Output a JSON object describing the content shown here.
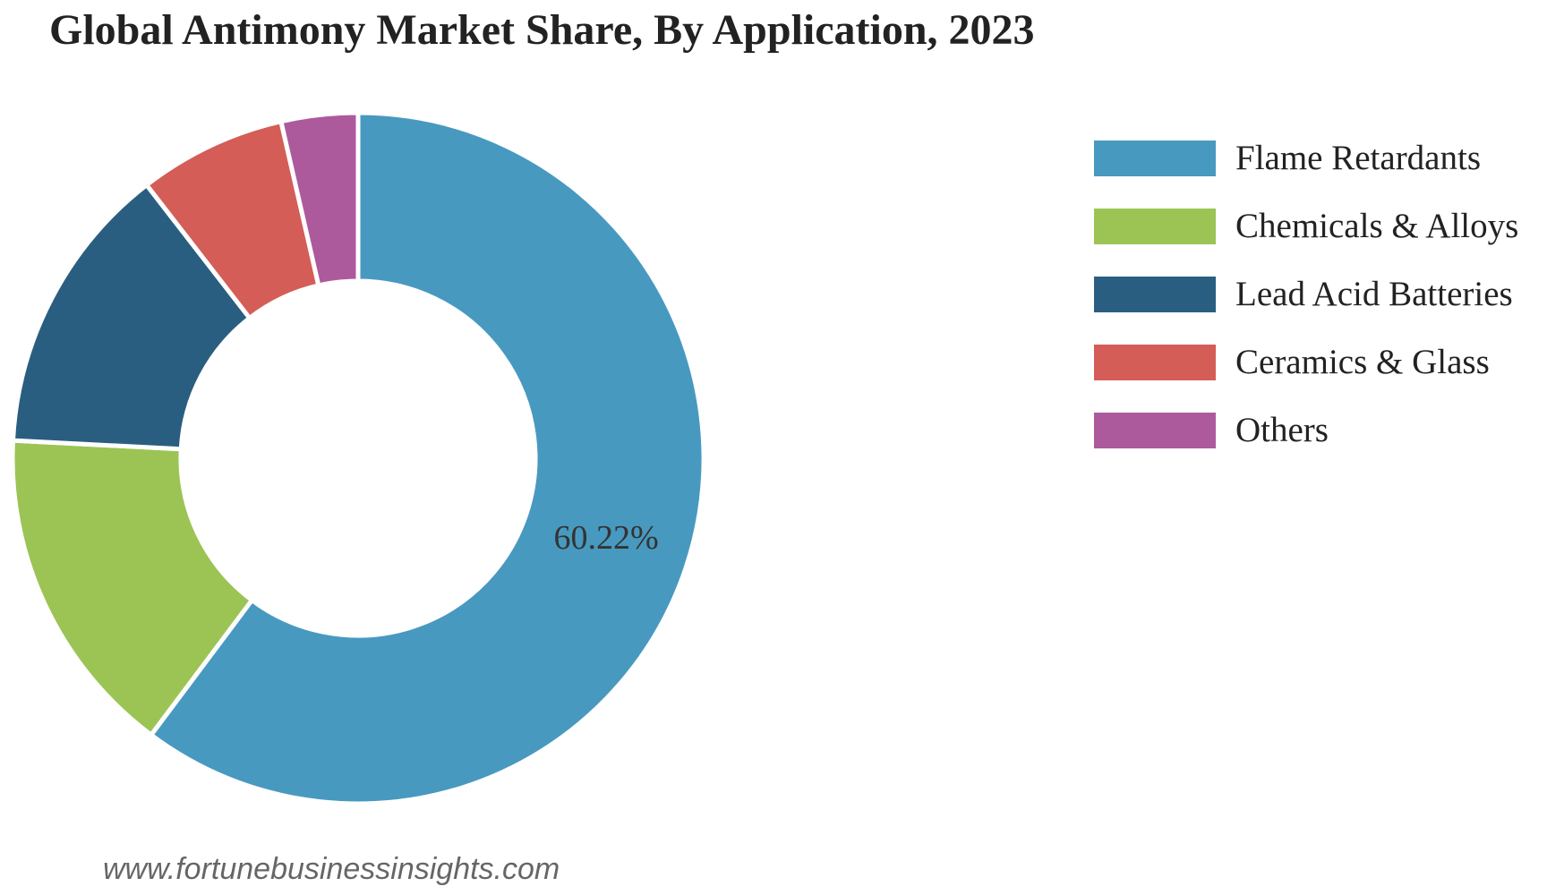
{
  "chart_data": {
    "type": "pie",
    "title": "Global Antimony Market Share, By Application, 2023",
    "categories": [
      "Flame Retardants",
      "Chemicals & Alloys",
      "Lead Acid Batteries",
      "Ceramics & Glass",
      "Others"
    ],
    "values": [
      60.22,
      15.6,
      13.7,
      6.9,
      3.58
    ],
    "colors": [
      "#4899c0",
      "#9bc455",
      "#2a5e80",
      "#d45d58",
      "#ad5a9d"
    ],
    "data_labels": [
      "60.22%",
      "",
      "",
      "",
      ""
    ],
    "legend_position": "right",
    "donut": true
  },
  "source": "www.fortunebusinessinsights.com"
}
